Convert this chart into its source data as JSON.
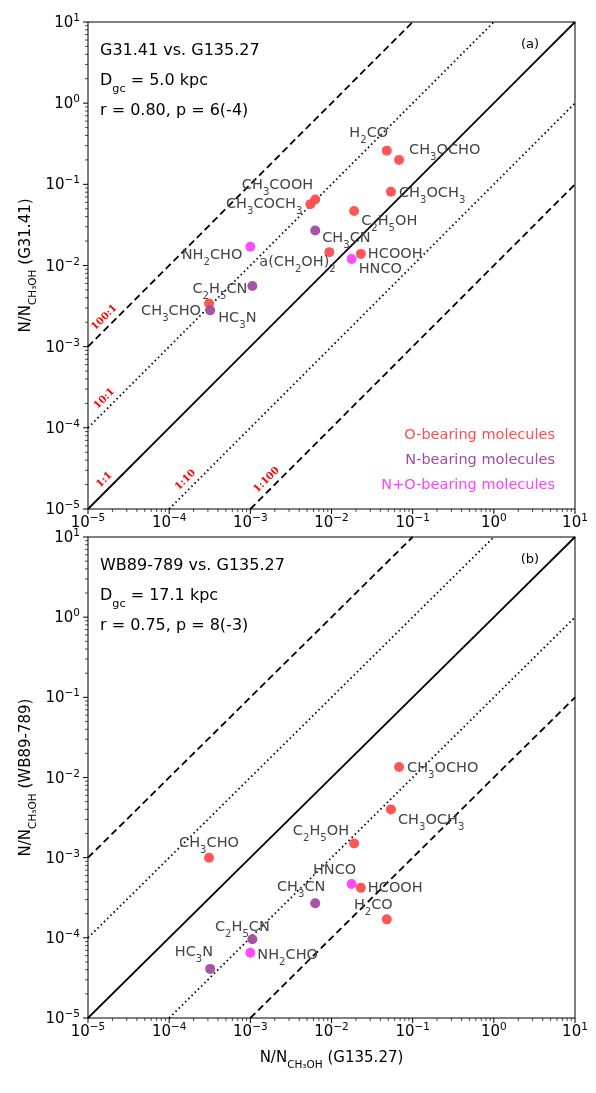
{
  "chart_data": [
    {
      "type": "scatter",
      "ylabel": "N/N$_{CH₃OH}$ (G31.41)",
      "xlim": [
        1e-05,
        10
      ],
      "ylim": [
        1e-05,
        10
      ],
      "log": "xy",
      "grid": false,
      "legend": "bottom right",
      "marker": "circle",
      "xticks": [
        {
          "value": 1e-05,
          "label": "10$^{−5}$"
        },
        {
          "value": 0.0001,
          "label": "10$^{−4}$"
        },
        {
          "value": 0.001,
          "label": "10$^{−3}$"
        },
        {
          "value": 0.01,
          "label": "10$^{−2}$"
        },
        {
          "value": 0.1,
          "label": "10$^{−1}$"
        },
        {
          "value": 1,
          "label": "10$^{0}$"
        },
        {
          "value": 10,
          "label": "10$^{1}$"
        }
      ],
      "yticks": [
        {
          "value": 1e-05,
          "label": "10$^{−5}$"
        },
        {
          "value": 0.0001,
          "label": "10$^{−4}$"
        },
        {
          "value": 0.001,
          "label": "10$^{−3}$"
        },
        {
          "value": 0.01,
          "label": "10$^{−2}$"
        },
        {
          "value": 0.1,
          "label": "10$^{−1}$"
        },
        {
          "value": 1,
          "label": "10$^{0}$"
        },
        {
          "value": 10,
          "label": "10$^{1}$"
        }
      ],
      "series": [
        {
          "type": "line",
          "name": "100:1",
          "color": "#000000",
          "line_style": "dashed",
          "marker": "none",
          "x": [
            1e-05,
            0.1
          ],
          "values": [
            0.001,
            10
          ]
        },
        {
          "type": "line",
          "name": "10:1",
          "color": "#000000",
          "line_style": "dotted",
          "marker": "none",
          "x": [
            1e-05,
            1
          ],
          "values": [
            0.0001,
            10
          ]
        },
        {
          "type": "line",
          "name": "1:1",
          "color": "#000000",
          "line_style": "solid",
          "marker": "none",
          "x": [
            1e-05,
            10
          ],
          "values": [
            1e-05,
            10
          ]
        },
        {
          "type": "line",
          "name": "1:10",
          "color": "#000000",
          "line_style": "dotted",
          "marker": "none",
          "x": [
            0.0001,
            10
          ],
          "values": [
            1e-05,
            1
          ]
        },
        {
          "type": "line",
          "name": "1:100",
          "color": "#000000",
          "line_style": "dashed",
          "marker": "none",
          "x": [
            0.001,
            10
          ],
          "values": [
            1e-05,
            0.1
          ]
        },
        {
          "type": "scatter",
          "name": "O-bearing molecules",
          "color": "#ff4d4d",
          "x": [
            0.048,
            0.068,
            0.054,
            0.0063,
            0.0055,
            0.019,
            0.0094,
            0.023,
            0.00031
          ],
          "values": [
            0.26,
            0.2,
            0.081,
            0.065,
            0.057,
            0.047,
            0.0146,
            0.0139,
            0.0034
          ]
        },
        {
          "type": "scatter",
          "name": "N-bearing molecules",
          "color": "#a24ba2",
          "x": [
            0.0063,
            0.00106,
            0.00032
          ],
          "values": [
            0.027,
            0.0056,
            0.0028
          ]
        },
        {
          "type": "scatter",
          "name": "N+O-bearing molecules",
          "color": "#ff40ff",
          "x": [
            0.001,
            0.0177
          ],
          "values": [
            0.017,
            0.012
          ]
        }
      ],
      "annotations": [
        "G31.41 vs. G135.27",
        "D$_{gc}$ = 5.0 kpc",
        "r = 0.80, p = 6(-4)",
        "(a)",
        {
          "text": "H$_{2}$CO",
          "x": 0.048,
          "y": 0.26
        },
        {
          "text": "CH$_{3}$OCHO",
          "x": 0.068,
          "y": 0.2
        },
        {
          "text": "CH$_{3}$OCH$_{3}$",
          "x": 0.054,
          "y": 0.081
        },
        {
          "text": "CH$_{3}$COOH",
          "x": 0.0063,
          "y": 0.065
        },
        {
          "text": "CH$_{3}$COCH$_{3}$",
          "x": 0.0055,
          "y": 0.057
        },
        {
          "text": "C$_{2}$H$_{5}$OH",
          "x": 0.019,
          "y": 0.047
        },
        {
          "text": "CH$_{3}$CN",
          "x": 0.0063,
          "y": 0.027
        },
        {
          "text": "NH$_{2}$CHO",
          "x": 0.001,
          "y": 0.017
        },
        {
          "text": "a(CH$_{2}$OH)$_{2}$",
          "x": 0.0094,
          "y": 0.0146
        },
        {
          "text": "HNCO",
          "x": 0.0177,
          "y": 0.012
        },
        {
          "text": "HCOOH",
          "x": 0.023,
          "y": 0.0139
        },
        {
          "text": "C$_{2}$H$_{5}$CN",
          "x": 0.00106,
          "y": 0.0056
        },
        {
          "text": "CH$_{3}$CHO",
          "x": 0.00031,
          "y": 0.0034
        },
        {
          "text": "HC$_{3}$N",
          "x": 0.00032,
          "y": 0.0028
        }
      ]
    },
    {
      "type": "scatter",
      "xlabel": "N/N$_{CH₃OH}$ (G135.27)",
      "ylabel": "N/N$_{CH₃OH}$ (WB89-789)",
      "xlim": [
        1e-05,
        10
      ],
      "ylim": [
        1e-05,
        10
      ],
      "log": "xy",
      "grid": false,
      "marker": "circle",
      "xticks": [
        {
          "value": 1e-05,
          "label": "10$^{−5}$"
        },
        {
          "value": 0.0001,
          "label": "10$^{−4}$"
        },
        {
          "value": 0.001,
          "label": "10$^{−3}$"
        },
        {
          "value": 0.01,
          "label": "10$^{−2}$"
        },
        {
          "value": 0.1,
          "label": "10$^{−1}$"
        },
        {
          "value": 1,
          "label": "10$^{0}$"
        },
        {
          "value": 10,
          "label": "10$^{1}$"
        }
      ],
      "yticks": [
        {
          "value": 1e-05,
          "label": "10$^{−5}$"
        },
        {
          "value": 0.0001,
          "label": "10$^{−4}$"
        },
        {
          "value": 0.001,
          "label": "10$^{−3}$"
        },
        {
          "value": 0.01,
          "label": "10$^{−2}$"
        },
        {
          "value": 0.1,
          "label": "10$^{−1}$"
        },
        {
          "value": 1,
          "label": "10$^{0}$"
        },
        {
          "value": 10,
          "label": "10$^{1}$"
        }
      ],
      "series": [
        {
          "type": "line",
          "color": "#000000",
          "line_style": "dashed",
          "marker": "none",
          "x": [
            1e-05,
            0.1
          ],
          "values": [
            0.001,
            10
          ]
        },
        {
          "type": "line",
          "color": "#000000",
          "line_style": "dotted",
          "marker": "none",
          "x": [
            1e-05,
            1
          ],
          "values": [
            0.0001,
            10
          ]
        },
        {
          "type": "line",
          "color": "#000000",
          "line_style": "solid",
          "marker": "none",
          "x": [
            1e-05,
            10
          ],
          "values": [
            1e-05,
            10
          ]
        },
        {
          "type": "line",
          "color": "#000000",
          "line_style": "dotted",
          "marker": "none",
          "x": [
            0.0001,
            10
          ],
          "values": [
            1e-05,
            1
          ]
        },
        {
          "type": "line",
          "color": "#000000",
          "line_style": "dashed",
          "marker": "none",
          "x": [
            0.001,
            10
          ],
          "values": [
            1e-05,
            0.1
          ]
        },
        {
          "type": "scatter",
          "color": "#ff4d4d",
          "x": [
            0.068,
            0.054,
            0.019,
            0.00031,
            0.023,
            0.048
          ],
          "values": [
            0.0135,
            0.004,
            0.0015,
            0.001,
            0.00042,
            0.00017
          ]
        },
        {
          "type": "scatter",
          "color": "#a24ba2",
          "x": [
            0.0063,
            0.00106,
            0.00032
          ],
          "values": [
            0.00027,
            9.6e-05,
            4.1e-05
          ]
        },
        {
          "type": "scatter",
          "color": "#ff40ff",
          "x": [
            0.0177,
            0.001
          ],
          "values": [
            0.00047,
            6.5e-05
          ]
        }
      ],
      "annotations": [
        "WB89-789 vs. G135.27",
        "D$_{gc}$ = 17.1 kpc",
        "r = 0.75, p = 8(-3)",
        "(b)",
        {
          "text": "CH$_{3}$OCHO",
          "x": 0.068,
          "y": 0.0135
        },
        {
          "text": "CH$_{3}$OCH$_{3}$",
          "x": 0.054,
          "y": 0.004
        },
        {
          "text": "C$_{2}$H$_{5}$OH",
          "x": 0.019,
          "y": 0.0015
        },
        {
          "text": "CH$_{3}$CHO",
          "x": 0.00031,
          "y": 0.001
        },
        {
          "text": "HNCO",
          "x": 0.0177,
          "y": 0.00047
        },
        {
          "text": "HCOOH",
          "x": 0.023,
          "y": 0.00042
        },
        {
          "text": "CH$_{3}$CN",
          "x": 0.0063,
          "y": 0.00027
        },
        {
          "text": "H$_{2}$CO",
          "x": 0.048,
          "y": 0.00017
        },
        {
          "text": "C$_{2}$H$_{5}$CN",
          "x": 0.00106,
          "y": 9.6e-05
        },
        {
          "text": "NH$_{2}$CHO",
          "x": 0.001,
          "y": 6.5e-05
        },
        {
          "text": "HC$_{3}$N",
          "x": 0.00032,
          "y": 4.1e-05
        }
      ]
    }
  ]
}
